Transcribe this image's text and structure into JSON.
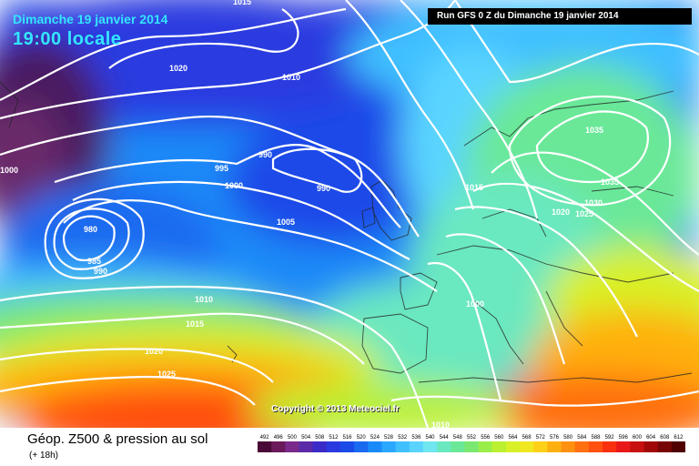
{
  "header": {
    "date": "Dimanche 19 janvier 2014",
    "time": "19:00 locale",
    "run": "Run GFS 0 Z du Dimanche 19 janvier 2014"
  },
  "copyright": "Copyright © 2013 Meteociel.fr",
  "footer": {
    "title": "Géop. Z500 & pression au sol",
    "subtitle": "(+ 18h)"
  },
  "scale": {
    "labels": [
      "492",
      "496",
      "500",
      "504",
      "508",
      "512",
      "516",
      "520",
      "524",
      "528",
      "532",
      "536",
      "540",
      "544",
      "548",
      "552",
      "556",
      "560",
      "564",
      "568",
      "572",
      "576",
      "580",
      "584",
      "588",
      "592",
      "596",
      "600",
      "604",
      "608",
      "612"
    ],
    "colors": [
      "#4a0a38",
      "#6a1a5a",
      "#7a2a8a",
      "#5a2aa8",
      "#3a2ac8",
      "#2a3ae0",
      "#1a4ae8",
      "#1a6af0",
      "#1a8af8",
      "#2aa8ff",
      "#40c0ff",
      "#5ad4ff",
      "#70e6f0",
      "#6ae8c0",
      "#6ae898",
      "#7ae870",
      "#9aee4a",
      "#baf030",
      "#d8f028",
      "#f0e820",
      "#ffd018",
      "#ffb010",
      "#ff9010",
      "#ff7010",
      "#ff5010",
      "#f83010",
      "#e81818",
      "#c81010",
      "#a00808",
      "#780404",
      "#500000"
    ]
  },
  "isobar_labels": [
    "1015",
    "1020",
    "1010",
    "1000",
    "990",
    "995",
    "1000",
    "990",
    "1005",
    "980",
    "985",
    "990",
    "1035",
    "1015",
    "1035",
    "1030",
    "1020",
    "1025",
    "1010",
    "1015",
    "1020",
    "1025",
    "1000",
    "1010"
  ],
  "colors": {
    "sea_outline": "#222222",
    "isobar": "#ffffff"
  }
}
